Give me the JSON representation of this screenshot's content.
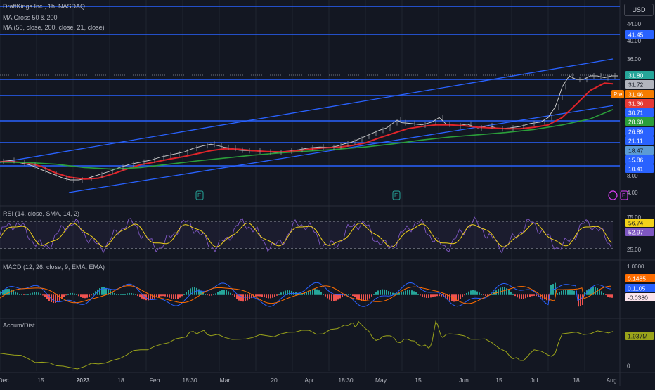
{
  "header": {
    "symbol_line": "DraftKings Inc., 1h, NASDAQ",
    "indicator_1": "MA Cross 50 & 200",
    "indicator_2": "MA (50, close, 200, close, 21, close)",
    "currency_button": "USD"
  },
  "colors": {
    "background": "#131722",
    "grid": "#1f2430",
    "hline": "#2962ff",
    "price": "#c8c8c8",
    "ma_red": "#e0242a",
    "ma_green": "#2b9e3a",
    "rsi": "#7e57c2",
    "rsi_signal": "#f2d21a",
    "macd": "#2962ff",
    "macd_signal": "#ff6d00",
    "accum": "#9aa31a"
  },
  "chart_data": [
    {
      "type": "line",
      "name": "price-pane",
      "ylim": [
        4,
        50
      ],
      "y_ticks": [
        "44.00",
        "40.00",
        "36.00",
        "8.00",
        "4.00"
      ],
      "x_ticks": [
        "Dec",
        "15",
        "2023",
        "18",
        "Feb",
        "18:30",
        "Mar",
        "20",
        "Apr",
        "18:30",
        "May",
        "15",
        "Jun",
        "15",
        "Jul",
        "18",
        "Aug"
      ],
      "price_labels": [
        {
          "text": "41.45",
          "color": "#2962ff",
          "fg": "#ffffff"
        },
        {
          "text": "31.80",
          "color": "#26a69a",
          "fg": "#ffffff"
        },
        {
          "text": "31.72",
          "color": "#b2b5be",
          "fg": "#131722"
        },
        {
          "text": "31.46",
          "color": "#f57c00",
          "fg": "#ffffff"
        },
        {
          "text": "31.36",
          "color": "#e53935",
          "fg": "#ffffff"
        },
        {
          "text": "30.71",
          "color": "#2962ff",
          "fg": "#ffffff"
        },
        {
          "text": "28.60",
          "color": "#2b9e3a",
          "fg": "#ffffff"
        },
        {
          "text": "26.89",
          "color": "#2962ff",
          "fg": "#ffffff"
        },
        {
          "text": "21.11",
          "color": "#2962ff",
          "fg": "#ffffff"
        },
        {
          "text": "18.47",
          "color": "#5b9bd5",
          "fg": "#131722"
        },
        {
          "text": "15.86",
          "color": "#2962ff",
          "fg": "#ffffff"
        },
        {
          "text": "10.41",
          "color": "#2962ff",
          "fg": "#ffffff"
        }
      ],
      "pre_label": "Pre",
      "earnings_marks": [
        "E",
        "E",
        "E"
      ],
      "series": [
        {
          "name": "price",
          "x": [
            0,
            15,
            30,
            45,
            60,
            75,
            90,
            100,
            112,
            125,
            140,
            155,
            170,
            185,
            200,
            215,
            228,
            238,
            250,
            262,
            275,
            290,
            300,
            310,
            320,
            330,
            340,
            350,
            365,
            380,
            395,
            410,
            425,
            440,
            455,
            470,
            480,
            490,
            500,
            510,
            520,
            530,
            540,
            550,
            560,
            565,
            572,
            585,
            600,
            615,
            625,
            635,
            650,
            665,
            680,
            695,
            710,
            725,
            740,
            755,
            770,
            780,
            790,
            795,
            800,
            810,
            820,
            830,
            840,
            850,
            860,
            870,
            880
          ],
          "y": [
            12.5,
            13.0,
            11.8,
            10.6,
            9.4,
            8.4,
            7.4,
            7.0,
            7.0,
            7.4,
            8.2,
            9.0,
            10.0,
            11.2,
            12.2,
            13.2,
            14.6,
            15.4,
            16.2,
            17.0,
            18.6,
            19.8,
            20.4,
            19.8,
            19.0,
            18.6,
            17.8,
            17.6,
            17.4,
            17.0,
            16.8,
            17.4,
            18.0,
            18.8,
            19.2,
            19.0,
            19.6,
            20.6,
            21.2,
            22.0,
            22.8,
            23.6,
            24.4,
            25.0,
            26.4,
            27.0,
            26.4,
            26.2,
            25.8,
            26.6,
            27.4,
            26.0,
            25.6,
            26.0,
            25.0,
            25.6,
            24.8,
            25.0,
            25.4,
            26.2,
            26.6,
            27.4,
            29.0,
            30.4,
            31.2,
            31.8,
            31.6,
            31.6,
            31.8,
            31.8,
            31.7,
            31.8,
            31.8
          ]
        },
        {
          "name": "ma-red",
          "x": [
            0,
            20,
            40,
            60,
            80,
            100,
            120,
            140,
            160,
            180,
            200,
            220,
            240,
            260,
            280,
            300,
            320,
            340,
            360,
            380,
            400,
            420,
            440,
            460,
            480,
            500,
            520,
            540,
            560,
            580,
            600,
            620,
            640,
            660,
            680,
            700,
            720,
            740,
            760,
            780,
            800,
            820,
            840,
            860,
            872
          ],
          "y": [
            12.4,
            12.4,
            11.8,
            10.2,
            8.6,
            7.6,
            7.2,
            7.4,
            8.4,
            9.6,
            11.0,
            12.2,
            13.6,
            14.8,
            16.2,
            17.6,
            18.4,
            18.2,
            17.6,
            17.2,
            17.0,
            17.4,
            18.2,
            18.8,
            19.0,
            19.8,
            21.0,
            22.4,
            23.6,
            24.8,
            25.4,
            25.8,
            25.8,
            25.6,
            25.2,
            25.0,
            24.8,
            24.8,
            25.2,
            25.8,
            27.4,
            29.4,
            31.0,
            31.4,
            31.36
          ]
        },
        {
          "name": "ma-green",
          "x": [
            0,
            40,
            80,
            120,
            160,
            200,
            240,
            280,
            320,
            360,
            400,
            440,
            480,
            520,
            560,
            600,
            640,
            680,
            720,
            760,
            800,
            840,
            872
          ],
          "y": [
            12.2,
            12.0,
            11.2,
            10.0,
            9.6,
            10.0,
            11.2,
            12.8,
            14.2,
            15.6,
            16.6,
            17.4,
            18.2,
            19.2,
            20.6,
            21.8,
            22.6,
            23.2,
            23.8,
            24.6,
            25.8,
            27.2,
            28.6
          ]
        }
      ],
      "trend_lines": [
        {
          "x1": 0,
          "y1": 12.0,
          "x2": 872,
          "y2": 36.0
        },
        {
          "x1": 98,
          "y1": 4.0,
          "x2": 872,
          "y2": 29.2
        }
      ]
    },
    {
      "type": "line",
      "name": "rsi-pane",
      "label": "RSI (14, close, SMA, 14, 2)",
      "ylim": [
        15,
        90
      ],
      "y_ticks": [
        "75.00",
        "25.00"
      ],
      "last_labels": [
        {
          "text": "56.74",
          "color": "#f2d21a",
          "fg": "#131722"
        },
        {
          "text": "52.97",
          "color": "#7e57c2",
          "fg": "#ffffff"
        }
      ],
      "band": [
        30,
        70
      ]
    },
    {
      "type": "line",
      "name": "macd-pane",
      "label": "MACD (12, 26, close, 9, EMA, EMA)",
      "ylim": [
        -0.9,
        1.3
      ],
      "y_ticks": [
        "1.0000"
      ],
      "last_labels": [
        {
          "text": "0.1485",
          "color": "#ff6d00",
          "fg": "#ffffff"
        },
        {
          "text": "0.1105",
          "color": "#2962ff",
          "fg": "#ffffff"
        },
        {
          "text": "-0.0380",
          "color": "#fce4ec",
          "fg": "#131722"
        }
      ]
    },
    {
      "type": "line",
      "name": "accum-pane",
      "label": "Accum/Dist",
      "ylim": [
        -0.3,
        2.6
      ],
      "y_ticks": [
        "0"
      ],
      "last_labels": [
        {
          "text": "1.937M",
          "color": "#9aa31a",
          "fg": "#131722"
        }
      ],
      "series": [
        {
          "name": "accum",
          "x": [
            0,
            20,
            40,
            60,
            80,
            100,
            120,
            140,
            160,
            180,
            200,
            220,
            240,
            260,
            270,
            280,
            290,
            300,
            320,
            340,
            360,
            380,
            400,
            420,
            440,
            460,
            480,
            490,
            500,
            505,
            510,
            520,
            530,
            540,
            550,
            560,
            570,
            580,
            590,
            600,
            610,
            615,
            620,
            625,
            630,
            640,
            660,
            680,
            700,
            720,
            730,
            740,
            750,
            760,
            780,
            790,
            800,
            820,
            840,
            860,
            872
          ],
          "y": [
            0.7,
            0.6,
            0.4,
            0.2,
            0.0,
            -0.1,
            -0.05,
            0.1,
            0.3,
            0.6,
            0.9,
            1.1,
            1.3,
            1.6,
            1.9,
            1.8,
            2.0,
            1.7,
            1.6,
            1.5,
            1.6,
            1.7,
            1.8,
            1.9,
            2.0,
            1.8,
            2.1,
            2.3,
            2.4,
            2.2,
            2.5,
            2.1,
            1.6,
            1.5,
            1.7,
            1.6,
            1.3,
            1.5,
            1.4,
            1.1,
            1.0,
            1.4,
            2.5,
            2.0,
            1.6,
            1.8,
            1.7,
            1.5,
            1.3,
            0.8,
            0.4,
            0.3,
            0.5,
            0.9,
            0.6,
            0.7,
            1.8,
            1.9,
            1.8,
            1.9,
            1.937
          ]
        }
      ]
    }
  ]
}
